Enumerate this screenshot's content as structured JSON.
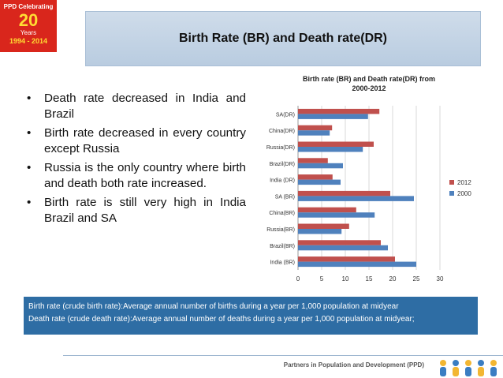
{
  "logo": {
    "line1": "PPD Celebrating",
    "line2": "20",
    "line3": "Years",
    "line4": "1994 - 2014"
  },
  "slide_title": "Birth Rate (BR) and Death rate(DR)",
  "bullets": [
    "Death rate decreased in India and Brazil",
    "Birth rate decreased in every country except Russia",
    "Russia is the only country where birth and death both rate increased.",
    "Birth rate is still very high in India Brazil and SA"
  ],
  "definitions": [
    "Birth rate (crude birth rate):Average annual number of births during a year per 1,000 population at midyear",
    "Death rate (crude death rate):Average annual number of deaths during a year per 1,000 population at midyear;"
  ],
  "footer": "Partners in Population and Development (PPD)",
  "colors": {
    "series2012": "#c0504d",
    "series2000": "#4f81bd",
    "defs_bg": "#2e6da4"
  },
  "chart_data": {
    "type": "bar",
    "orientation": "horizontal",
    "title_lines": [
      "Birth rate (BR) and Death rate(DR) from",
      "2000-2012"
    ],
    "categories": [
      "India (BR)",
      "Brazil(BR)",
      "Russia(BR)",
      "China(BR)",
      "SA (BR)",
      "India (DR)",
      "Brazil(DR)",
      "Russia(DR)",
      "China(DR)",
      "SA(DR)"
    ],
    "series": [
      {
        "name": "2012",
        "values": [
          20.5,
          17.5,
          10.8,
          12.3,
          19.5,
          7.3,
          6.3,
          16,
          7.2,
          17.2
        ]
      },
      {
        "name": "2000",
        "values": [
          25,
          19,
          9.2,
          16.2,
          24.5,
          9,
          9.5,
          13.7,
          6.7,
          14.8
        ]
      }
    ],
    "xlim": [
      0,
      30
    ],
    "xticks": [
      0,
      5,
      10,
      15,
      20,
      25,
      30
    ],
    "grid": true,
    "legend": "right"
  }
}
